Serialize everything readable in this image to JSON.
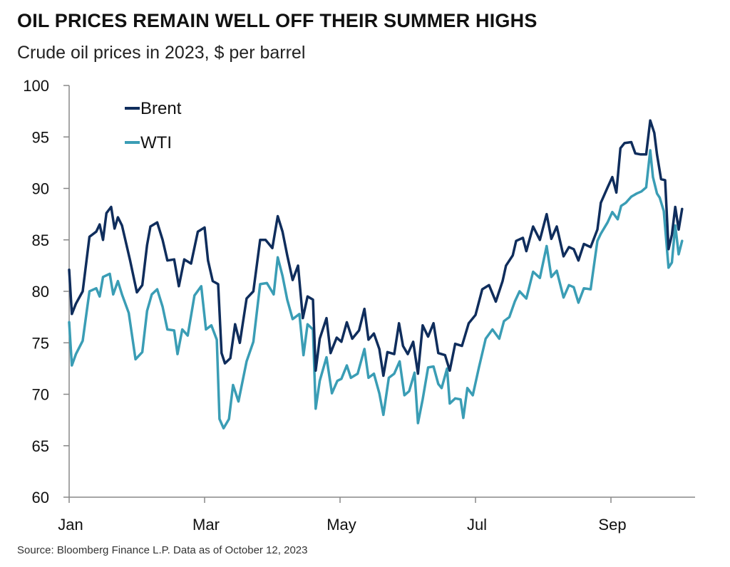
{
  "title": "OIL PRICES REMAIN WELL OFF THEIR SUMMER HIGHS",
  "subtitle": "Crude oil prices in 2023, $ per barrel",
  "source": "Source: Bloomberg Finance L.P. Data as of October 12, 2023",
  "colors": {
    "brent": "#0f2d5c",
    "wti": "#3a9db5",
    "axis": "#888888"
  },
  "chart_data": {
    "type": "line",
    "title": "OIL PRICES REMAIN WELL OFF THEIR SUMMER HIGHS",
    "subtitle": "Crude oil prices in 2023, $ per barrel",
    "xlabel": "",
    "ylabel": "",
    "ylim": [
      60,
      100
    ],
    "yticks": [
      60,
      65,
      70,
      75,
      80,
      85,
      90,
      95,
      100
    ],
    "xlim": [
      0,
      9.35
    ],
    "xticks": [
      {
        "pos": 0,
        "label": "Jan"
      },
      {
        "pos": 2,
        "label": "Mar"
      },
      {
        "pos": 4,
        "label": "May"
      },
      {
        "pos": 6,
        "label": "Jul"
      },
      {
        "pos": 8,
        "label": "Sep"
      }
    ],
    "grid": false,
    "legend": "top-left",
    "series": [
      {
        "name": "Brent",
        "color_key": "brent",
        "points": [
          [
            0,
            82.1
          ],
          [
            0.04,
            77.8
          ],
          [
            0.1,
            78.8
          ],
          [
            0.2,
            80.0
          ],
          [
            0.3,
            85.3
          ],
          [
            0.4,
            85.8
          ],
          [
            0.45,
            86.5
          ],
          [
            0.5,
            85.0
          ],
          [
            0.55,
            87.6
          ],
          [
            0.62,
            88.2
          ],
          [
            0.67,
            86.1
          ],
          [
            0.72,
            87.2
          ],
          [
            0.78,
            86.4
          ],
          [
            0.9,
            83.0
          ],
          [
            1.0,
            79.9
          ],
          [
            1.08,
            80.6
          ],
          [
            1.15,
            84.5
          ],
          [
            1.2,
            86.3
          ],
          [
            1.3,
            86.7
          ],
          [
            1.38,
            85.0
          ],
          [
            1.45,
            83.0
          ],
          [
            1.55,
            83.1
          ],
          [
            1.62,
            80.5
          ],
          [
            1.7,
            83.1
          ],
          [
            1.8,
            82.7
          ],
          [
            1.9,
            85.8
          ],
          [
            2.0,
            86.2
          ],
          [
            2.05,
            83.0
          ],
          [
            2.12,
            81.0
          ],
          [
            2.2,
            80.7
          ],
          [
            2.25,
            74.0
          ],
          [
            2.3,
            73.0
          ],
          [
            2.38,
            73.5
          ],
          [
            2.45,
            76.8
          ],
          [
            2.52,
            75.0
          ],
          [
            2.62,
            79.3
          ],
          [
            2.72,
            80.0
          ],
          [
            2.82,
            85.0
          ],
          [
            2.9,
            85.0
          ],
          [
            3.0,
            84.2
          ],
          [
            3.08,
            87.3
          ],
          [
            3.15,
            85.8
          ],
          [
            3.22,
            83.5
          ],
          [
            3.3,
            81.1
          ],
          [
            3.38,
            82.5
          ],
          [
            3.45,
            77.4
          ],
          [
            3.52,
            79.5
          ],
          [
            3.6,
            79.2
          ],
          [
            3.64,
            72.3
          ],
          [
            3.7,
            75.4
          ],
          [
            3.8,
            77.4
          ],
          [
            3.86,
            74.0
          ],
          [
            3.95,
            75.5
          ],
          [
            4.02,
            75.1
          ],
          [
            4.1,
            77.0
          ],
          [
            4.18,
            75.4
          ],
          [
            4.28,
            76.2
          ],
          [
            4.36,
            78.3
          ],
          [
            4.42,
            75.3
          ],
          [
            4.5,
            75.9
          ],
          [
            4.58,
            74.4
          ],
          [
            4.64,
            71.8
          ],
          [
            4.7,
            74.1
          ],
          [
            4.8,
            73.9
          ],
          [
            4.87,
            76.9
          ],
          [
            4.93,
            74.7
          ],
          [
            5.0,
            73.9
          ],
          [
            5.08,
            75.1
          ],
          [
            5.15,
            72.0
          ],
          [
            5.22,
            76.7
          ],
          [
            5.3,
            75.6
          ],
          [
            5.38,
            76.9
          ],
          [
            5.45,
            74.0
          ],
          [
            5.55,
            73.8
          ],
          [
            5.62,
            72.3
          ],
          [
            5.7,
            74.9
          ],
          [
            5.8,
            74.7
          ],
          [
            5.9,
            76.9
          ],
          [
            6.0,
            77.7
          ],
          [
            6.1,
            80.2
          ],
          [
            6.2,
            80.6
          ],
          [
            6.3,
            79.0
          ],
          [
            6.4,
            81.0
          ],
          [
            6.45,
            82.5
          ],
          [
            6.55,
            83.5
          ],
          [
            6.6,
            84.9
          ],
          [
            6.7,
            85.2
          ],
          [
            6.75,
            83.9
          ],
          [
            6.85,
            86.3
          ],
          [
            6.95,
            85.0
          ],
          [
            7.05,
            87.5
          ],
          [
            7.12,
            85.1
          ],
          [
            7.2,
            86.3
          ],
          [
            7.3,
            83.4
          ],
          [
            7.38,
            84.3
          ],
          [
            7.45,
            84.1
          ],
          [
            7.52,
            83.0
          ],
          [
            7.6,
            84.6
          ],
          [
            7.7,
            84.3
          ],
          [
            7.8,
            86.0
          ],
          [
            7.85,
            88.6
          ],
          [
            7.95,
            90.1
          ],
          [
            8.02,
            91.1
          ],
          [
            8.08,
            89.6
          ],
          [
            8.14,
            93.9
          ],
          [
            8.2,
            94.4
          ],
          [
            8.3,
            94.5
          ],
          [
            8.36,
            93.4
          ],
          [
            8.44,
            93.3
          ],
          [
            8.52,
            93.3
          ],
          [
            8.58,
            96.6
          ],
          [
            8.64,
            95.4
          ],
          [
            8.68,
            93.3
          ],
          [
            8.74,
            90.9
          ],
          [
            8.8,
            90.8
          ],
          [
            8.85,
            84.1
          ],
          [
            8.9,
            85.5
          ],
          [
            8.95,
            88.2
          ],
          [
            9.0,
            86.0
          ],
          [
            9.05,
            88.0
          ]
        ]
      },
      {
        "name": "WTI",
        "color_key": "wti",
        "points": [
          [
            0,
            77.0
          ],
          [
            0.04,
            72.8
          ],
          [
            0.1,
            73.9
          ],
          [
            0.2,
            75.2
          ],
          [
            0.3,
            80.0
          ],
          [
            0.4,
            80.3
          ],
          [
            0.45,
            79.5
          ],
          [
            0.5,
            81.4
          ],
          [
            0.6,
            81.7
          ],
          [
            0.65,
            79.7
          ],
          [
            0.72,
            81.0
          ],
          [
            0.78,
            79.7
          ],
          [
            0.88,
            77.9
          ],
          [
            0.98,
            73.4
          ],
          [
            1.08,
            74.1
          ],
          [
            1.15,
            78.1
          ],
          [
            1.22,
            79.7
          ],
          [
            1.3,
            80.2
          ],
          [
            1.38,
            78.5
          ],
          [
            1.45,
            76.3
          ],
          [
            1.55,
            76.2
          ],
          [
            1.6,
            73.9
          ],
          [
            1.67,
            76.3
          ],
          [
            1.75,
            75.7
          ],
          [
            1.85,
            79.6
          ],
          [
            1.95,
            80.5
          ],
          [
            2.02,
            76.3
          ],
          [
            2.1,
            76.7
          ],
          [
            2.18,
            75.3
          ],
          [
            2.22,
            67.6
          ],
          [
            2.28,
            66.7
          ],
          [
            2.36,
            67.6
          ],
          [
            2.42,
            70.9
          ],
          [
            2.5,
            69.3
          ],
          [
            2.62,
            73.2
          ],
          [
            2.72,
            75.1
          ],
          [
            2.82,
            80.7
          ],
          [
            2.92,
            80.8
          ],
          [
            3.02,
            79.7
          ],
          [
            3.08,
            83.3
          ],
          [
            3.15,
            81.5
          ],
          [
            3.22,
            79.2
          ],
          [
            3.3,
            77.3
          ],
          [
            3.4,
            77.8
          ],
          [
            3.46,
            73.8
          ],
          [
            3.52,
            76.8
          ],
          [
            3.6,
            76.3
          ],
          [
            3.64,
            68.6
          ],
          [
            3.7,
            71.3
          ],
          [
            3.8,
            73.6
          ],
          [
            3.88,
            70.1
          ],
          [
            3.96,
            71.3
          ],
          [
            4.02,
            71.5
          ],
          [
            4.1,
            72.8
          ],
          [
            4.16,
            71.6
          ],
          [
            4.26,
            72.0
          ],
          [
            4.36,
            74.4
          ],
          [
            4.42,
            71.6
          ],
          [
            4.5,
            72.0
          ],
          [
            4.58,
            70.1
          ],
          [
            4.64,
            68.0
          ],
          [
            4.72,
            71.6
          ],
          [
            4.8,
            72.0
          ],
          [
            4.88,
            73.2
          ],
          [
            4.95,
            69.9
          ],
          [
            5.02,
            70.3
          ],
          [
            5.1,
            72.1
          ],
          [
            5.15,
            67.2
          ],
          [
            5.22,
            69.5
          ],
          [
            5.3,
            72.6
          ],
          [
            5.38,
            72.7
          ],
          [
            5.45,
            71.0
          ],
          [
            5.5,
            70.6
          ],
          [
            5.58,
            72.5
          ],
          [
            5.62,
            69.1
          ],
          [
            5.7,
            69.6
          ],
          [
            5.78,
            69.5
          ],
          [
            5.82,
            67.7
          ],
          [
            5.88,
            70.6
          ],
          [
            5.96,
            69.9
          ],
          [
            6.05,
            72.6
          ],
          [
            6.15,
            75.4
          ],
          [
            6.25,
            76.3
          ],
          [
            6.35,
            75.4
          ],
          [
            6.42,
            77.1
          ],
          [
            6.5,
            77.5
          ],
          [
            6.58,
            79.0
          ],
          [
            6.65,
            80.0
          ],
          [
            6.75,
            79.3
          ],
          [
            6.85,
            81.9
          ],
          [
            6.95,
            81.3
          ],
          [
            7.05,
            84.4
          ],
          [
            7.12,
            81.4
          ],
          [
            7.2,
            82.0
          ],
          [
            7.3,
            79.4
          ],
          [
            7.38,
            80.6
          ],
          [
            7.45,
            80.4
          ],
          [
            7.52,
            78.9
          ],
          [
            7.6,
            80.3
          ],
          [
            7.7,
            80.2
          ],
          [
            7.8,
            84.9
          ],
          [
            7.85,
            85.6
          ],
          [
            7.95,
            86.7
          ],
          [
            8.02,
            87.7
          ],
          [
            8.1,
            87.0
          ],
          [
            8.15,
            88.3
          ],
          [
            8.22,
            88.6
          ],
          [
            8.3,
            89.2
          ],
          [
            8.38,
            89.5
          ],
          [
            8.45,
            89.7
          ],
          [
            8.52,
            90.1
          ],
          [
            8.58,
            93.7
          ],
          [
            8.62,
            91.1
          ],
          [
            8.68,
            89.5
          ],
          [
            8.72,
            89.1
          ],
          [
            8.78,
            87.8
          ],
          [
            8.85,
            82.3
          ],
          [
            8.9,
            82.8
          ],
          [
            8.95,
            86.4
          ],
          [
            9.0,
            83.6
          ],
          [
            9.05,
            84.9
          ]
        ]
      }
    ]
  }
}
